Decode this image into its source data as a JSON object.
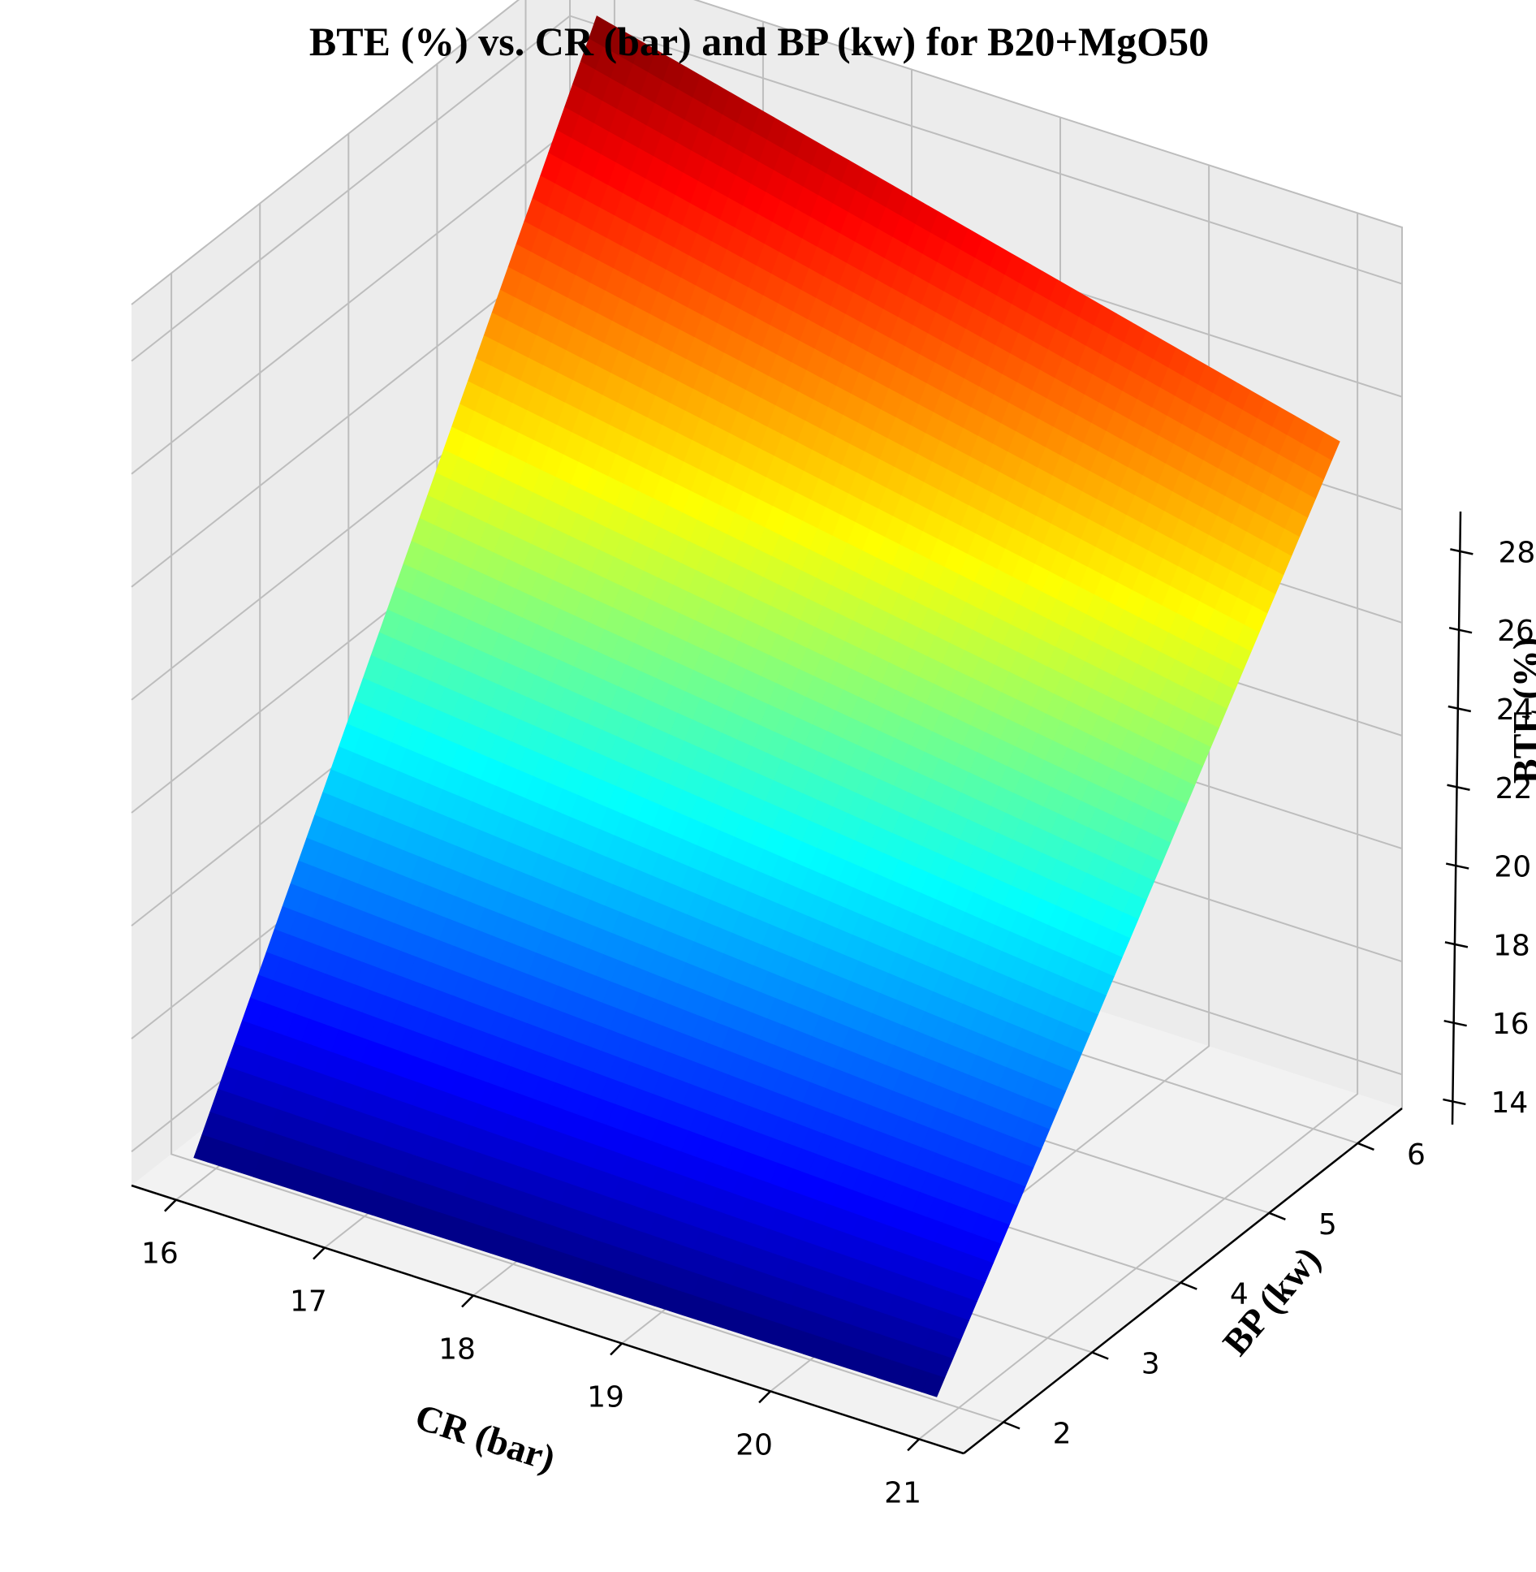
{
  "chart_data": {
    "type": "surface",
    "title": "BTE (%) vs. CR (bar) and BP (kw) for B20+MgO50",
    "xlabel": "CR (bar)",
    "ylabel": "BP (kw)",
    "zlabel": "BTE (%)",
    "x_ticks": [
      "16",
      "17",
      "18",
      "19",
      "20",
      "21"
    ],
    "y_ticks": [
      "2",
      "3",
      "4",
      "5",
      "6"
    ],
    "z_ticks": [
      "14",
      "16",
      "18",
      "20",
      "22",
      "24",
      "26",
      "28"
    ],
    "xlim": [
      15.7,
      21.3
    ],
    "ylim": [
      1.55,
      6.5
    ],
    "zlim": [
      13.4,
      29
    ],
    "colormap": "jet",
    "grid": true,
    "corners": [
      {
        "cr": 16,
        "bp": 1.75,
        "bte": 13.9
      },
      {
        "cr": 21,
        "bp": 1.75,
        "bte": 13.9
      },
      {
        "cr": 16,
        "bp": 6.3,
        "bte": 28.5
      },
      {
        "cr": 21,
        "bp": 6.3,
        "bte": 25.2
      }
    ]
  }
}
